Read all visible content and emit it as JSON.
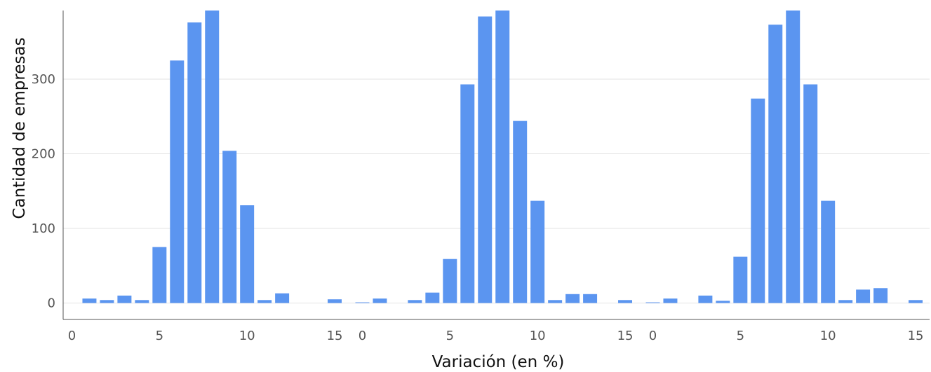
{
  "chart_data": {
    "type": "bar",
    "layout": "facets",
    "xlabel": "Variación (en %)",
    "ylabel": "Cantidad de empresas",
    "xlim": [
      -0.5,
      15.8
    ],
    "ylim": [
      -22,
      392
    ],
    "x_ticks": [
      0,
      5,
      10,
      15
    ],
    "y_ticks": [
      0,
      100,
      200,
      300
    ],
    "grid": "horizontal",
    "bar_color": "#5b95f0",
    "panels": [
      {
        "x": [
          1,
          2,
          3,
          4,
          5,
          6,
          7,
          8,
          9,
          10,
          11,
          12,
          15
        ],
        "values": [
          6,
          4,
          10,
          4,
          75,
          325,
          376,
          392,
          204,
          131,
          4,
          13,
          5
        ]
      },
      {
        "x": [
          0,
          1,
          3,
          4,
          5,
          6,
          7,
          8,
          9,
          10,
          11,
          12,
          13,
          15
        ],
        "values": [
          0,
          6,
          4,
          14,
          59,
          293,
          384,
          392,
          244,
          137,
          4,
          12,
          12,
          4
        ]
      },
      {
        "x": [
          0,
          1,
          3,
          4,
          5,
          6,
          7,
          8,
          9,
          10,
          11,
          12,
          13,
          15
        ],
        "values": [
          0,
          6,
          10,
          3,
          62,
          274,
          373,
          392,
          293,
          137,
          4,
          18,
          20,
          4
        ]
      }
    ]
  }
}
